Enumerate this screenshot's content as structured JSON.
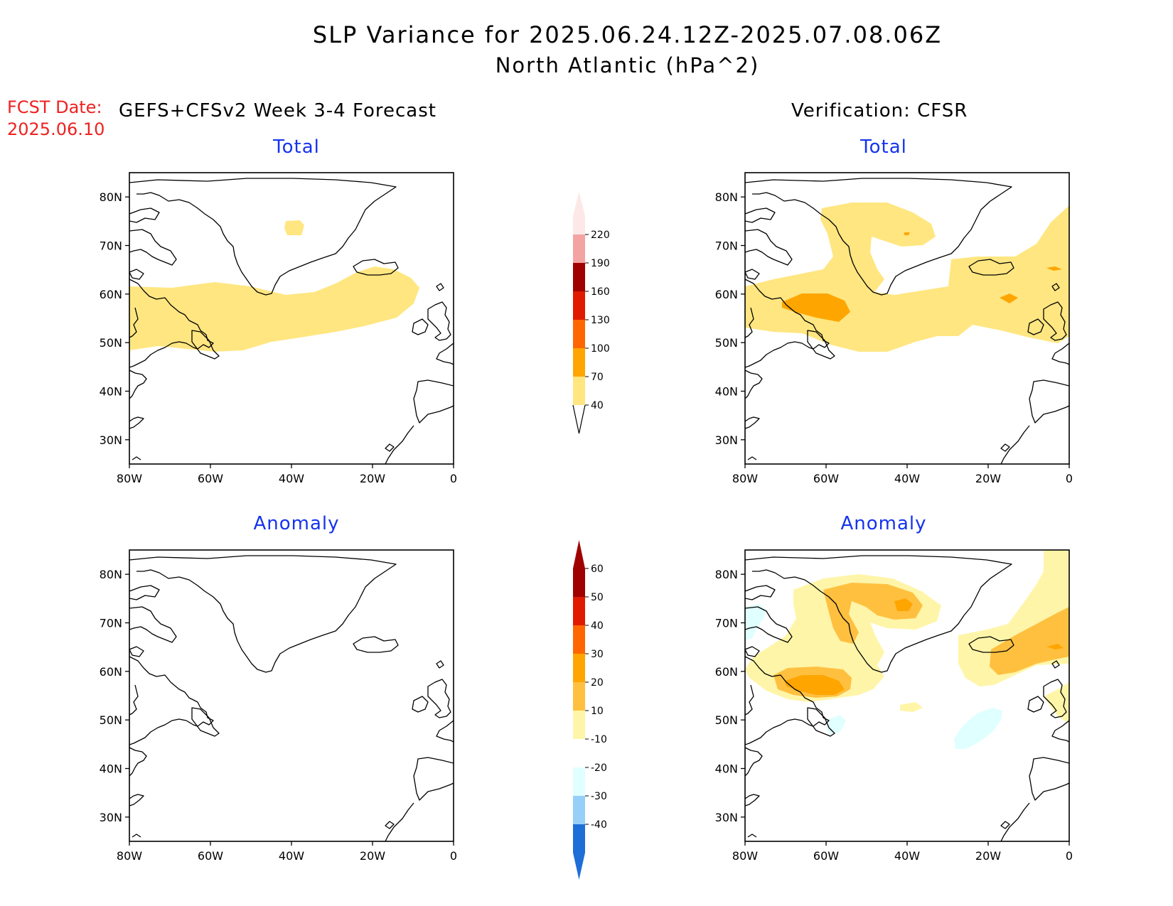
{
  "header": {
    "title": "SLP Variance for 2025.06.24.12Z-2025.07.08.06Z",
    "subtitle": "North Atlantic (hPa^2)"
  },
  "forecast_date": {
    "label": "FCST Date:",
    "value": "2025.06.10"
  },
  "columns": {
    "left": "GEFS+CFSv2 Week 3-4 Forecast",
    "right": "Verification: CFSR"
  },
  "panels": {
    "top_left": "Total",
    "top_right": "Total",
    "bottom_left": "Anomaly",
    "bottom_right": "Anomaly"
  },
  "axes": {
    "lat_labels": [
      "80N",
      "70N",
      "60N",
      "50N",
      "40N",
      "30N"
    ],
    "lon_labels": [
      "80W",
      "60W",
      "40W",
      "20W",
      "0"
    ]
  },
  "colorbars": {
    "total": {
      "levels": [
        "40",
        "70",
        "100",
        "130",
        "160",
        "190",
        "220"
      ],
      "colors": [
        "#ffe680",
        "#ffa500",
        "#ff6600",
        "#e01a00",
        "#a00000",
        "#f4a3a3",
        "#fde8e8"
      ]
    },
    "anomaly": {
      "levels": [
        "60",
        "50",
        "40",
        "30",
        "20",
        "10",
        "-10",
        "-20",
        "-30",
        "-40"
      ],
      "colors": [
        "#a00000",
        "#e01a00",
        "#ff6600",
        "#ffa500",
        "#ffc040",
        "#fff5a8",
        "#ffffff",
        "#e0ffff",
        "#96cff8",
        "#3b8ee8",
        "#1e6ed8"
      ]
    }
  },
  "chart_data": [
    {
      "type": "heatmap",
      "panel": "GEFS+CFSv2 Week 3-4 Forecast - Total",
      "units": "hPa^2",
      "xlim": [
        -80,
        0
      ],
      "ylim": [
        25,
        85
      ],
      "regions": [
        {
          "level": "40-70",
          "lon_range": [
            -80,
            -12
          ],
          "lat_range": [
            47,
            64
          ]
        },
        {
          "level": "40-70",
          "lon_range": [
            -41,
            -35
          ],
          "lat_range": [
            73,
            75
          ]
        }
      ]
    },
    {
      "type": "heatmap",
      "panel": "Verification: CFSR - Total",
      "units": "hPa^2",
      "xlim": [
        -80,
        0
      ],
      "ylim": [
        25,
        85
      ],
      "regions": [
        {
          "level": "40-70",
          "lon_range": [
            -80,
            0
          ],
          "lat_range": [
            48,
            78
          ]
        },
        {
          "level": "70-100",
          "lon_range": [
            -71,
            -52
          ],
          "lat_range": [
            55,
            59
          ]
        },
        {
          "level": "70-100",
          "lon_range": [
            -15,
            -11
          ],
          "lat_range": [
            59,
            60
          ]
        },
        {
          "level": "70-100",
          "lon_range": [
            -7,
            -4
          ],
          "lat_range": [
            64,
            65
          ]
        }
      ]
    },
    {
      "type": "heatmap",
      "panel": "GEFS+CFSv2 Week 3-4 Forecast - Anomaly",
      "units": "hPa^2",
      "xlim": [
        -80,
        0
      ],
      "ylim": [
        25,
        85
      ],
      "regions": []
    },
    {
      "type": "heatmap",
      "panel": "Verification: CFSR - Anomaly",
      "units": "hPa^2",
      "xlim": [
        -80,
        0
      ],
      "ylim": [
        25,
        85
      ],
      "regions": [
        {
          "level": "10-20",
          "lon_range": [
            -80,
            0
          ],
          "lat_range": [
            52,
            85
          ]
        },
        {
          "level": "20-30",
          "lon_range": [
            -70,
            -55
          ],
          "lat_range": [
            54,
            60
          ]
        },
        {
          "level": "20-30",
          "lon_range": [
            -63,
            -35
          ],
          "lat_range": [
            65,
            77
          ]
        },
        {
          "level": "20-30",
          "lon_range": [
            -18,
            0
          ],
          "lat_range": [
            58,
            72
          ]
        },
        {
          "level": "30-40",
          "lon_range": [
            -67,
            -55
          ],
          "lat_range": [
            55,
            58
          ]
        },
        {
          "level": "30-40",
          "lon_range": [
            -45,
            -38
          ],
          "lat_range": [
            72,
            75
          ]
        },
        {
          "level": "30-40",
          "lon_range": [
            -6,
            -3
          ],
          "lat_range": [
            64,
            65
          ]
        },
        {
          "level": "-10 to -20",
          "lon_range": [
            -80,
            -75
          ],
          "lat_range": [
            63,
            70
          ]
        },
        {
          "level": "-10 to -20",
          "lon_range": [
            -58,
            -54
          ],
          "lat_range": [
            48,
            51
          ]
        },
        {
          "level": "-10 to -20",
          "lon_range": [
            -26,
            -13
          ],
          "lat_range": [
            44,
            52
          ]
        }
      ]
    }
  ]
}
